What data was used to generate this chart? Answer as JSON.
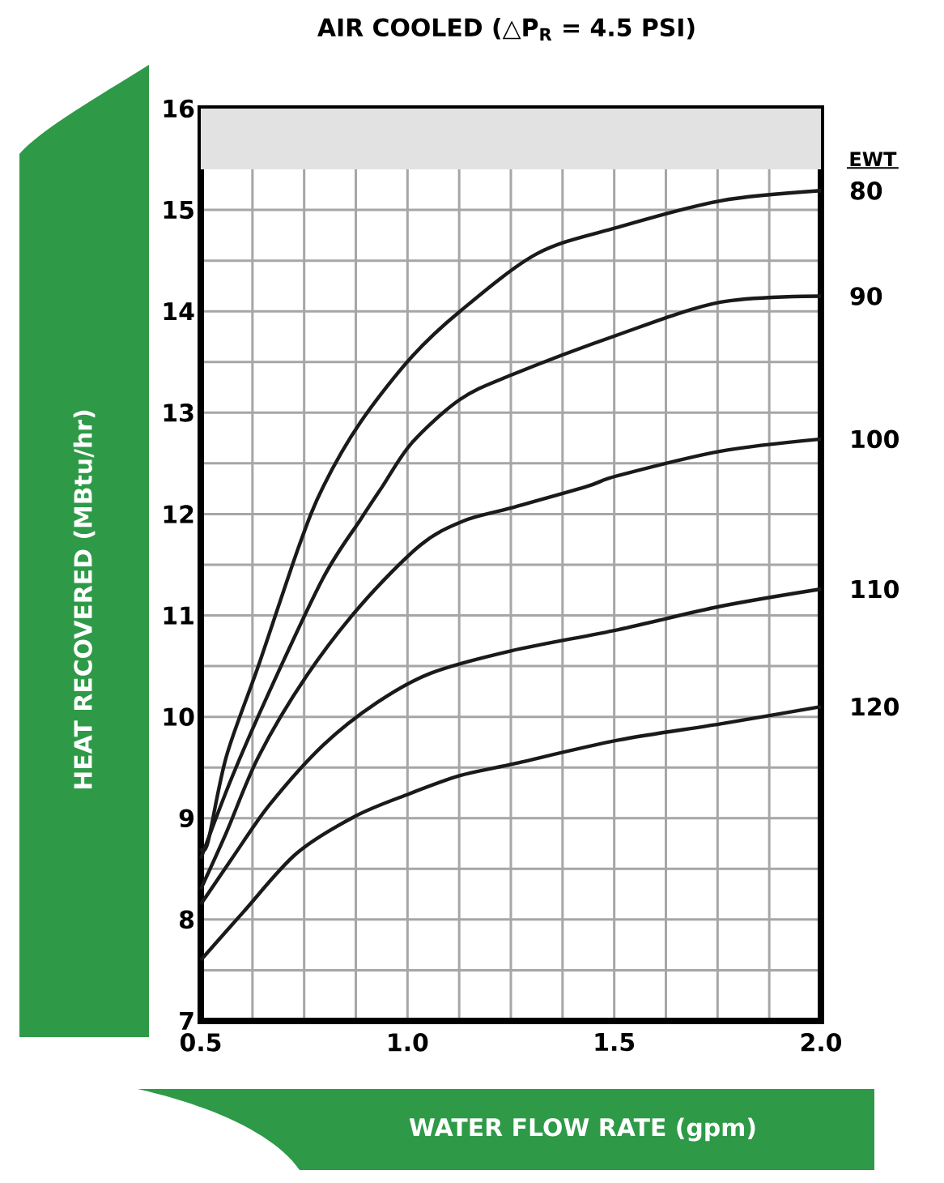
{
  "chart_data": {
    "type": "line",
    "title": "AIR COOLED (△P$_{R}$ = 4.5 PSI)",
    "xlabel": "WATER FLOW RATE (gpm)",
    "ylabel": "HEAT RECOVERED (MBtu/hr)",
    "legend_title": "EWT",
    "xlim": [
      0.5,
      2.0
    ],
    "ylim": [
      7,
      16
    ],
    "xticks": [
      0.5,
      {
        "value": 0.625,
        "label": null
      },
      {
        "value": 0.75,
        "label": null
      },
      {
        "value": 0.875,
        "label": null
      },
      {
        "value": 1.0,
        "label": "1.0"
      },
      {
        "value": 1.125,
        "label": null
      },
      {
        "value": 1.25,
        "label": null
      },
      {
        "value": 1.375,
        "label": null
      },
      1.5,
      {
        "value": 1.625,
        "label": null
      },
      {
        "value": 1.75,
        "label": null
      },
      {
        "value": 1.875,
        "label": null
      },
      {
        "value": 2.0,
        "label": "2.0"
      }
    ],
    "yticks": [
      7,
      {
        "value": 7.5,
        "label": null
      },
      8,
      {
        "value": 8.5,
        "label": null
      },
      9,
      {
        "value": 9.5,
        "label": null
      },
      10,
      {
        "value": 10.5,
        "label": null
      },
      11,
      {
        "value": 11.5,
        "label": null
      },
      12,
      {
        "value": 12.5,
        "label": null
      },
      13,
      {
        "value": 13.5,
        "label": null
      },
      14,
      {
        "value": 14.5,
        "label": null
      },
      15,
      16
    ],
    "grid": true,
    "bands": [
      {
        "axis": "y",
        "from": 15.4,
        "to": 16,
        "color": "#e2e2e2"
      }
    ],
    "series": [
      {
        "name": "80",
        "color": "#1a1a1a",
        "x": [
          0.5,
          0.517,
          0.562,
          0.64,
          0.738,
          0.796,
          0.887,
          1.01,
          1.127,
          1.314,
          1.51,
          1.757,
          2.0
        ],
        "values": [
          8.7,
          8.76,
          9.61,
          10.51,
          11.69,
          12.27,
          12.91,
          13.55,
          14.0,
          14.57,
          14.83,
          15.09,
          15.19
        ]
      },
      {
        "name": "90",
        "color": "#1a1a1a",
        "x": [
          0.5,
          0.575,
          0.666,
          0.796,
          0.887,
          0.939,
          1.01,
          1.127,
          1.25,
          1.51,
          1.757,
          2.0
        ],
        "values": [
          8.6,
          9.4,
          10.25,
          11.37,
          11.95,
          12.27,
          12.7,
          13.13,
          13.37,
          13.77,
          14.09,
          14.15
        ]
      },
      {
        "name": "100",
        "color": "#1a1a1a",
        "x": [
          0.5,
          0.562,
          0.64,
          0.757,
          0.887,
          1.03,
          1.134,
          1.25,
          1.432,
          1.51,
          1.757,
          2.0
        ],
        "values": [
          8.3,
          8.86,
          9.61,
          10.41,
          11.1,
          11.69,
          11.93,
          12.06,
          12.27,
          12.38,
          12.62,
          12.74
        ]
      },
      {
        "name": "110",
        "color": "#1a1a1a",
        "x": [
          0.5,
          0.575,
          0.666,
          0.796,
          0.926,
          1.056,
          1.25,
          1.51,
          1.757,
          2.0
        ],
        "values": [
          8.15,
          8.6,
          9.13,
          9.72,
          10.14,
          10.43,
          10.65,
          10.86,
          11.09,
          11.26
        ]
      },
      {
        "name": "120",
        "color": "#1a1a1a",
        "x": [
          0.5,
          0.602,
          0.731,
          0.874,
          1.004,
          1.127,
          1.25,
          1.51,
          1.757,
          2.0
        ],
        "values": [
          7.6,
          8.07,
          8.65,
          9.02,
          9.24,
          9.42,
          9.53,
          9.77,
          9.93,
          10.1
        ]
      }
    ]
  }
}
